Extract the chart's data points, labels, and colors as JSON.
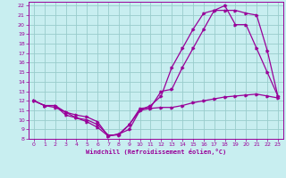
{
  "xlabel": "Windchill (Refroidissement éolien,°C)",
  "bg_color": "#c8eef0",
  "line_color": "#990099",
  "grid_color": "#99cccc",
  "xlim": [
    -0.5,
    23.5
  ],
  "ylim": [
    8,
    22.4
  ],
  "xticks": [
    0,
    1,
    2,
    3,
    4,
    5,
    6,
    7,
    8,
    9,
    10,
    11,
    12,
    13,
    14,
    15,
    16,
    17,
    18,
    19,
    20,
    21,
    22,
    23
  ],
  "yticks": [
    8,
    9,
    10,
    11,
    12,
    13,
    14,
    15,
    16,
    17,
    18,
    19,
    20,
    21,
    22
  ],
  "line1_x": [
    0,
    1,
    2,
    3,
    4,
    5,
    6,
    7,
    8,
    9,
    10,
    11,
    12,
    13,
    14,
    15,
    16,
    17,
    18,
    19,
    20,
    21,
    22,
    23
  ],
  "line1_y": [
    12,
    11.5,
    11.3,
    10.8,
    10.2,
    9.8,
    9.2,
    8.3,
    8.5,
    9.0,
    11.0,
    11.2,
    11.3,
    11.3,
    11.5,
    11.8,
    12.0,
    12.2,
    12.4,
    12.5,
    12.6,
    12.7,
    12.5,
    12.3
  ],
  "line2_x": [
    0,
    1,
    2,
    3,
    4,
    5,
    6,
    7,
    8,
    9,
    10,
    11,
    12,
    13,
    14,
    15,
    16,
    17,
    18,
    19,
    20,
    21,
    22,
    23
  ],
  "line2_y": [
    12,
    11.5,
    11.5,
    10.5,
    10.2,
    10.0,
    9.5,
    8.4,
    8.4,
    9.5,
    11.2,
    11.3,
    13.0,
    13.2,
    15.5,
    17.5,
    19.5,
    21.5,
    22.0,
    20.0,
    20.0,
    17.5,
    15.0,
    12.5
  ],
  "line3_x": [
    0,
    1,
    2,
    3,
    4,
    5,
    6,
    7,
    8,
    9,
    10,
    11,
    12,
    13,
    14,
    15,
    16,
    17,
    18,
    19,
    20,
    21,
    22,
    23
  ],
  "line3_y": [
    12,
    11.5,
    11.5,
    10.8,
    10.5,
    10.3,
    9.8,
    8.3,
    8.5,
    9.5,
    11.0,
    11.5,
    12.5,
    15.5,
    17.5,
    19.5,
    21.2,
    21.5,
    21.5,
    21.5,
    21.2,
    21.0,
    17.3,
    12.5
  ]
}
